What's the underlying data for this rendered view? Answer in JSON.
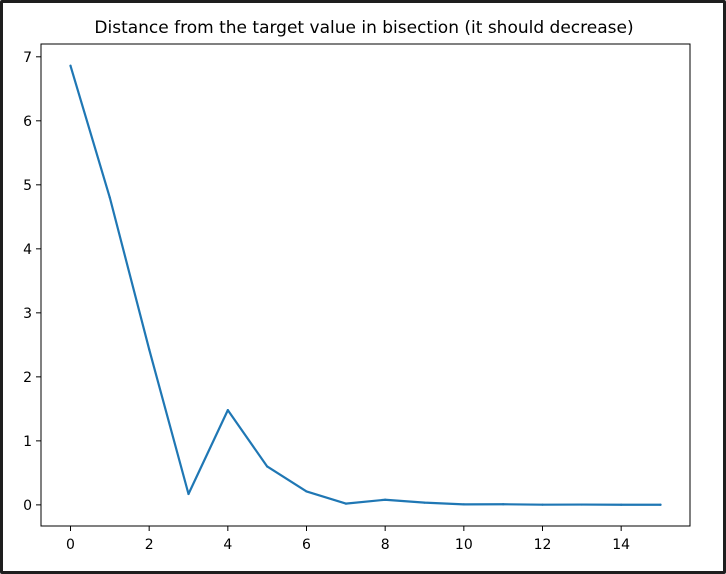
{
  "chart_data": {
    "type": "line",
    "title": "Distance from the target value in bisection (it should decrease)",
    "xlabel": "",
    "ylabel": "",
    "x": [
      0,
      1,
      2,
      3,
      4,
      5,
      6,
      7,
      8,
      9,
      10,
      11,
      12,
      13,
      14,
      15
    ],
    "series": [
      {
        "name": "",
        "color": "#1f77b4",
        "values": [
          6.86,
          4.8,
          2.43,
          0.17,
          1.48,
          0.6,
          0.21,
          0.02,
          0.08,
          0.035,
          0.008,
          0.01,
          0.003,
          0.005,
          0.002,
          0.002
        ]
      }
    ],
    "xlim": [
      -0.75,
      15.75
    ],
    "ylim": [
      -0.33,
      7.2
    ],
    "xticks": [
      0,
      2,
      4,
      6,
      8,
      10,
      12,
      14
    ],
    "yticks": [
      0,
      1,
      2,
      3,
      4,
      5,
      6,
      7
    ],
    "grid": false,
    "legend": "none"
  }
}
